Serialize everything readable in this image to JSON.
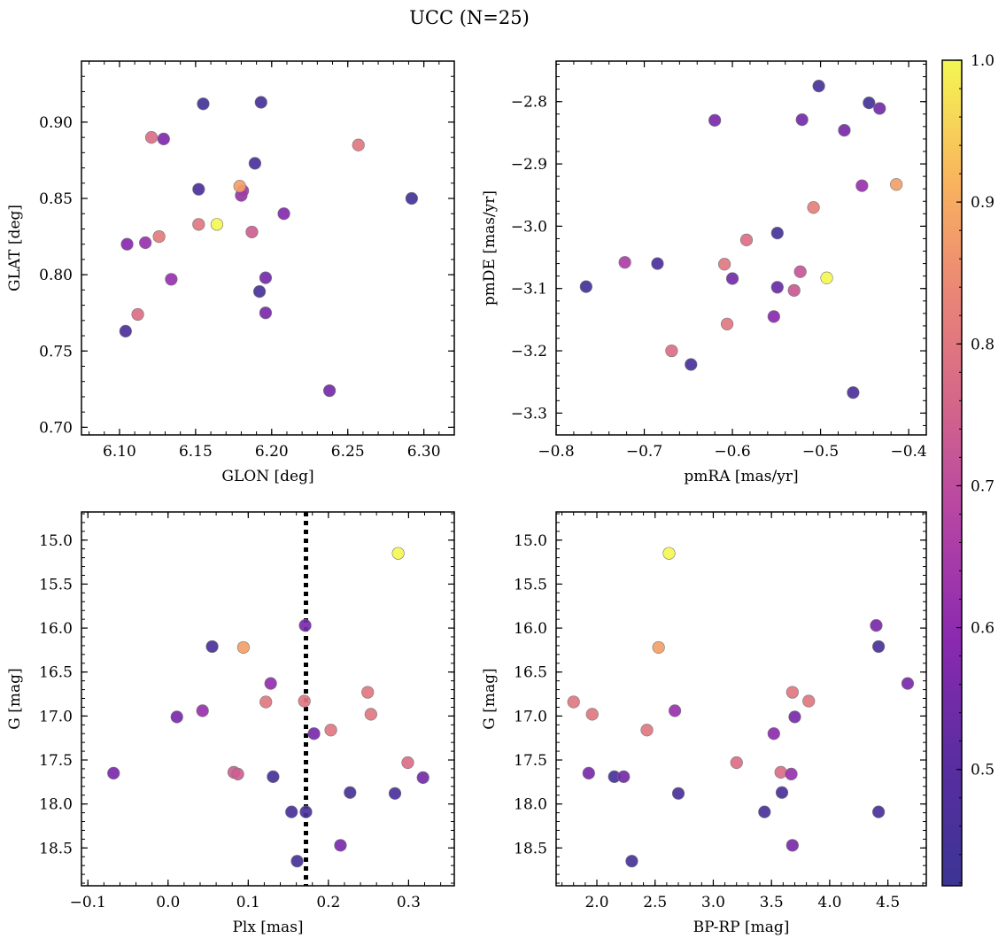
{
  "figure": {
    "title": "UCC (N=25)"
  },
  "colorbar": {
    "range": [
      0.418,
      1.0
    ],
    "ticks": [
      0.5,
      0.6,
      0.7,
      0.8,
      0.9,
      1.0
    ],
    "tick_labels": [
      "0.5",
      "0.6",
      "0.7",
      "0.8",
      "0.9",
      "1.0"
    ],
    "colormap": "plasma"
  },
  "chart_data": [
    {
      "type": "scatter",
      "id": "glon-glat",
      "xlabel": "GLON [deg]",
      "ylabel": "GLAT [deg]",
      "xlim": [
        6.075,
        6.32
      ],
      "ylim": [
        0.695,
        0.94
      ],
      "xticks": [
        6.1,
        6.15,
        6.2,
        6.25,
        6.3
      ],
      "xtick_labels": [
        "6.10",
        "6.15",
        "6.20",
        "6.25",
        "6.30"
      ],
      "yticks": [
        0.7,
        0.75,
        0.8,
        0.85,
        0.9
      ],
      "ytick_labels": [
        "0.70",
        "0.75",
        "0.80",
        "0.85",
        "0.90"
      ],
      "x": [
        6.155,
        6.193,
        6.121,
        6.129,
        6.257,
        6.189,
        6.152,
        6.292,
        6.18,
        6.181,
        6.208,
        6.164,
        6.152,
        6.187,
        6.126,
        6.105,
        6.117,
        6.134,
        6.196,
        6.192,
        6.196,
        6.112,
        6.104,
        6.238,
        6.179
      ],
      "y": [
        0.912,
        0.913,
        0.89,
        0.889,
        0.885,
        0.873,
        0.856,
        0.85,
        0.852,
        0.855,
        0.84,
        0.833,
        0.833,
        0.828,
        0.825,
        0.82,
        0.821,
        0.797,
        0.798,
        0.789,
        0.775,
        0.774,
        0.763,
        0.724,
        0.858
      ],
      "color_values": [
        0.44,
        0.45,
        0.78,
        0.57,
        0.8,
        0.46,
        0.46,
        0.44,
        0.62,
        0.64,
        0.58,
        1.0,
        0.8,
        0.74,
        0.81,
        0.59,
        0.62,
        0.62,
        0.55,
        0.45,
        0.56,
        0.78,
        0.47,
        0.55,
        0.88
      ]
    },
    {
      "type": "scatter",
      "id": "pmra-pmde",
      "xlabel": "pmRA [mas/yr]",
      "ylabel": "pmDE [mas/yr]",
      "xlim": [
        -0.8,
        -0.38
      ],
      "ylim": [
        -3.335,
        -2.735
      ],
      "xticks": [
        -0.8,
        -0.7,
        -0.6,
        -0.5,
        -0.4
      ],
      "xtick_labels": [
        "−0.8",
        "−0.7",
        "−0.6",
        "−0.5",
        "−0.4"
      ],
      "yticks": [
        -3.3,
        -3.2,
        -3.1,
        -3.0,
        -2.9,
        -2.8
      ],
      "ytick_labels": [
        "−3.3",
        "−3.2",
        "−3.1",
        "−3.0",
        "−2.9",
        "−2.8"
      ],
      "x": [
        -0.502,
        -0.445,
        -0.433,
        -0.62,
        -0.521,
        -0.473,
        -0.453,
        -0.414,
        -0.508,
        -0.549,
        -0.584,
        -0.722,
        -0.685,
        -0.609,
        -0.523,
        -0.6,
        -0.766,
        -0.549,
        -0.53,
        -0.493,
        -0.553,
        -0.606,
        -0.669,
        -0.647,
        -0.463
      ],
      "y": [
        -2.775,
        -2.802,
        -2.811,
        -2.83,
        -2.829,
        -2.846,
        -2.935,
        -2.933,
        -2.97,
        -3.011,
        -3.022,
        -3.058,
        -3.06,
        -3.061,
        -3.073,
        -3.084,
        -3.097,
        -3.098,
        -3.103,
        -3.083,
        -3.145,
        -3.157,
        -3.2,
        -3.222,
        -3.267
      ],
      "color_values": [
        0.45,
        0.44,
        0.55,
        0.56,
        0.55,
        0.56,
        0.62,
        0.88,
        0.82,
        0.45,
        0.78,
        0.66,
        0.46,
        0.8,
        0.72,
        0.55,
        0.44,
        0.53,
        0.73,
        1.0,
        0.59,
        0.8,
        0.78,
        0.46,
        0.47
      ]
    },
    {
      "type": "scatter",
      "id": "plx-g",
      "xlabel": "Plx [mas]",
      "ylabel": "G [mag]",
      "xlim": [
        -0.108,
        0.357
      ],
      "ylim": [
        18.93,
        14.68
      ],
      "y_inverted": true,
      "xticks": [
        -0.1,
        0.0,
        0.1,
        0.2,
        0.3
      ],
      "xtick_labels": [
        "−0.1",
        "0.0",
        "0.1",
        "0.2",
        "0.3"
      ],
      "yticks": [
        15.0,
        15.5,
        16.0,
        16.5,
        17.0,
        17.5,
        18.0,
        18.5
      ],
      "ytick_labels": [
        "15.0",
        "15.5",
        "16.0",
        "16.5",
        "17.0",
        "17.5",
        "18.0",
        "18.5"
      ],
      "vline": {
        "x": 0.172,
        "style": "dotted"
      },
      "x": [
        0.287,
        0.171,
        0.055,
        0.094,
        0.128,
        0.249,
        0.122,
        0.17,
        0.253,
        0.011,
        0.043,
        0.182,
        0.203,
        0.299,
        0.318,
        -0.068,
        0.082,
        0.087,
        0.131,
        0.227,
        0.283,
        0.154,
        0.172,
        0.215,
        0.161
      ],
      "y": [
        15.15,
        15.97,
        16.21,
        16.22,
        16.63,
        16.73,
        16.84,
        16.83,
        16.98,
        17.01,
        16.94,
        17.2,
        17.16,
        17.53,
        17.7,
        17.65,
        17.64,
        17.66,
        17.69,
        17.87,
        17.88,
        18.09,
        18.09,
        18.47,
        18.65
      ],
      "color_values": [
        1.0,
        0.56,
        0.46,
        0.88,
        0.61,
        0.8,
        0.8,
        0.8,
        0.8,
        0.56,
        0.62,
        0.56,
        0.8,
        0.78,
        0.55,
        0.56,
        0.74,
        0.74,
        0.45,
        0.45,
        0.46,
        0.46,
        0.46,
        0.56,
        0.45
      ]
    },
    {
      "type": "scatter",
      "id": "bprp-g",
      "xlabel": "BP-RP [mag]",
      "ylabel": "G [mag]",
      "xlim": [
        1.65,
        4.83
      ],
      "ylim": [
        18.93,
        14.68
      ],
      "y_inverted": true,
      "xticks": [
        2.0,
        2.5,
        3.0,
        3.5,
        4.0,
        4.5
      ],
      "xtick_labels": [
        "2.0",
        "2.5",
        "3.0",
        "3.5",
        "4.0",
        "4.5"
      ],
      "yticks": [
        15.0,
        15.5,
        16.0,
        16.5,
        17.0,
        17.5,
        18.0,
        18.5
      ],
      "ytick_labels": [
        "15.0",
        "15.5",
        "16.0",
        "16.5",
        "17.0",
        "17.5",
        "18.0",
        "18.5"
      ],
      "x": [
        2.62,
        4.4,
        4.42,
        2.53,
        4.67,
        3.68,
        1.8,
        3.82,
        1.96,
        3.7,
        2.67,
        2.43,
        3.52,
        3.2,
        1.93,
        2.15,
        2.23,
        3.58,
        3.67,
        2.7,
        3.59,
        3.44,
        4.42,
        3.68,
        2.3
      ],
      "y": [
        15.15,
        15.97,
        16.21,
        16.22,
        16.63,
        16.73,
        16.84,
        16.83,
        16.98,
        17.01,
        16.94,
        17.16,
        17.2,
        17.53,
        17.65,
        17.69,
        17.69,
        17.64,
        17.66,
        17.88,
        17.87,
        18.09,
        18.09,
        18.47,
        18.65
      ],
      "color_values": [
        1.0,
        0.56,
        0.46,
        0.88,
        0.56,
        0.8,
        0.8,
        0.8,
        0.8,
        0.56,
        0.62,
        0.8,
        0.6,
        0.78,
        0.56,
        0.45,
        0.55,
        0.78,
        0.62,
        0.46,
        0.46,
        0.46,
        0.46,
        0.56,
        0.45
      ]
    }
  ]
}
